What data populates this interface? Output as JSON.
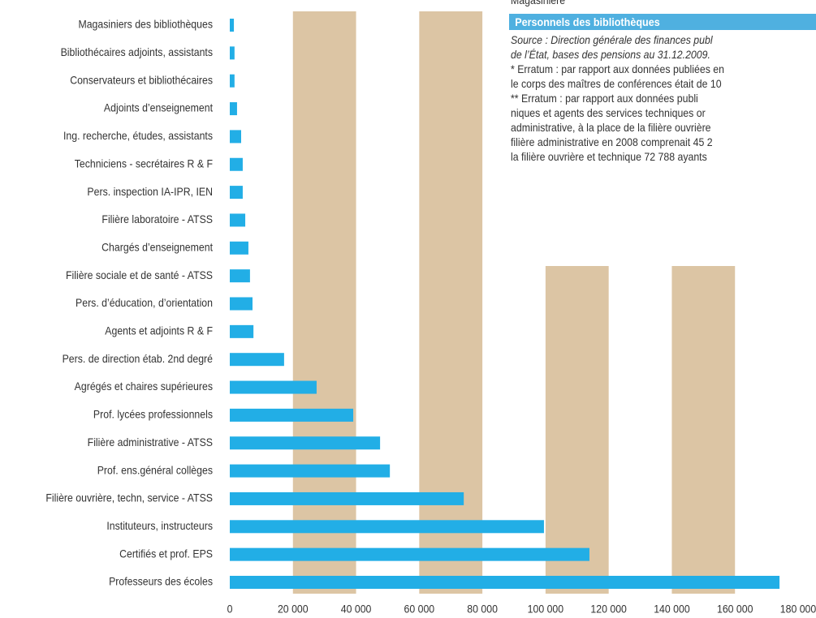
{
  "chart_data": {
    "type": "bar",
    "orientation": "horizontal",
    "categories": [
      "Magasiniers des bibliothèques",
      "Bibliothécaires adjoints, assistants",
      "Conservateurs et bibliothécaires",
      "Adjoints d’enseignement",
      "Ing. recherche, études, assistants",
      "Techniciens - secrétaires R & F",
      "Pers. inspection IA-IPR, IEN",
      "Filière laboratoire - ATSS",
      "Chargés d’enseignement",
      "Filière sociale et de santé - ATSS",
      "Pers. d’éducation, d’orientation",
      "Agents et adjoints R & F",
      "Pers. de direction étab. 2nd degré",
      "Agrégés et chaires supérieures",
      "Prof. lycées professionnels",
      "Filière administrative - ATSS",
      "Prof. ens.général collèges",
      "Filière ouvrière, techn, service - ATSS",
      "Instituteurs, instructeurs",
      "Certifiés et prof. EPS",
      "Professeurs des écoles"
    ],
    "values": [
      1300,
      1500,
      1500,
      2300,
      3600,
      4100,
      4100,
      4900,
      5900,
      6400,
      7200,
      7500,
      17200,
      27500,
      39100,
      47600,
      50700,
      74100,
      99500,
      113900,
      174100
    ],
    "color": "#22aee6",
    "band_color": "#dcc5a4",
    "xlim": [
      0,
      180000
    ],
    "xticks": [
      0,
      {
        "value": 20000,
        "label": "20 000"
      },
      {
        "value": 40000,
        "label": "40 000"
      },
      {
        "value": 60000,
        "label": "60 000"
      },
      {
        "value": 80000,
        "label": "80 000"
      },
      {
        "value": 100000,
        "label": "100 000"
      },
      {
        "value": 120000,
        "label": "120 000"
      },
      {
        "value": 140000,
        "label": "140 000"
      },
      {
        "value": 160000,
        "label": "160 000"
      },
      {
        "value": 180000,
        "label": "180 000"
      }
    ]
  },
  "note": {
    "cut_text": "Magasinière",
    "header": "Personnels des bibliothèques",
    "source": [
      "Source : Direction générale des finances publ",
      "de l’État, bases des pensions au 31.12.2009."
    ],
    "lines": [
      "* Erratum : par rapport aux données publiées en",
      "le corps des maîtres de conférences était de 10",
      "** Erratum : par rapport aux données publi",
      "niques et agents des services techniques or",
      "administrative, à la place de la filière ouvrière",
      "filière administrative en 2008 comprenait 45 2",
      "la filière ouvrière et technique 72 788 ayants"
    ]
  }
}
